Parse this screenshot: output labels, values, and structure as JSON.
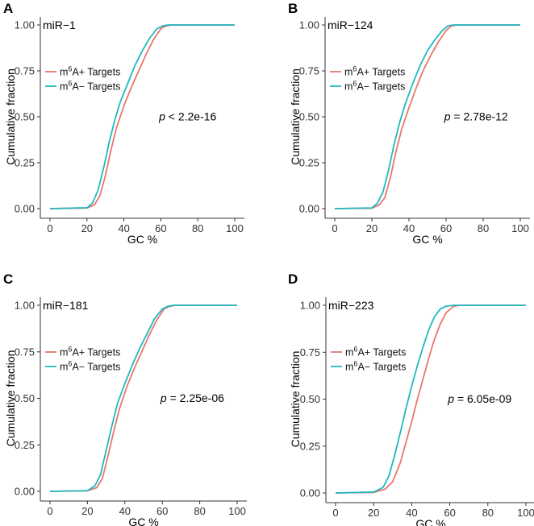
{
  "colors": {
    "positive": "#e8776e",
    "negative": "#1fb8c3"
  },
  "chart_data": [
    {
      "type": "line",
      "panel": "A",
      "title": "miR−1",
      "xlabel": "GC %",
      "ylabel": "Cumulative fraction",
      "xlim": [
        0,
        100
      ],
      "ylim": [
        0,
        1
      ],
      "x_ticks": [
        "0",
        "20",
        "40",
        "60",
        "80",
        "100"
      ],
      "y_ticks": [
        "0.00",
        "0.25",
        "0.50",
        "0.75",
        "1.00"
      ],
      "legend": {
        "prefix": "m",
        "superscript": "6",
        "positive": "A+ Targets",
        "negative": "A− Targets"
      },
      "p_label": "p",
      "p_text": " < 2.2e-16",
      "series": [
        {
          "name": "m6A+ Targets",
          "color_key": "positive",
          "x": [
            0,
            20,
            24,
            27,
            30,
            33,
            36,
            40,
            44,
            48,
            52,
            56,
            60,
            63,
            66,
            100
          ],
          "y": [
            0,
            0.003,
            0.02,
            0.07,
            0.18,
            0.32,
            0.44,
            0.56,
            0.66,
            0.75,
            0.84,
            0.92,
            0.98,
            0.995,
            1,
            1
          ]
        },
        {
          "name": "m6A− Targets",
          "color_key": "negative",
          "x": [
            0,
            20,
            23,
            26,
            29,
            32,
            35,
            38,
            42,
            46,
            50,
            54,
            58,
            61,
            64,
            100
          ],
          "y": [
            0,
            0.005,
            0.03,
            0.1,
            0.22,
            0.36,
            0.48,
            0.58,
            0.68,
            0.78,
            0.86,
            0.93,
            0.98,
            0.995,
            1,
            1
          ]
        }
      ]
    },
    {
      "type": "line",
      "panel": "B",
      "title": "miR−124",
      "xlabel": "GC %",
      "ylabel": "Cumulative fraction",
      "xlim": [
        0,
        100
      ],
      "ylim": [
        0,
        1
      ],
      "x_ticks": [
        "0",
        "20",
        "40",
        "60",
        "80",
        "100"
      ],
      "y_ticks": [
        "0.00",
        "0.25",
        "0.50",
        "0.75",
        "1.00"
      ],
      "legend": {
        "prefix": "m",
        "superscript": "6",
        "positive": "A+ Targets",
        "negative": "A− Targets"
      },
      "p_label": "p",
      "p_text": " = 2.78e-12",
      "series": [
        {
          "name": "m6A+ Targets",
          "color_key": "positive",
          "x": [
            0,
            20,
            24,
            27,
            30,
            33,
            36,
            40,
            44,
            48,
            52,
            56,
            60,
            63,
            66,
            100
          ],
          "y": [
            0,
            0.002,
            0.02,
            0.06,
            0.17,
            0.31,
            0.43,
            0.55,
            0.66,
            0.76,
            0.84,
            0.91,
            0.97,
            0.995,
            1,
            1
          ]
        },
        {
          "name": "m6A− Targets",
          "color_key": "negative",
          "x": [
            0,
            20,
            23,
            26,
            29,
            32,
            35,
            38,
            42,
            46,
            50,
            54,
            58,
            61,
            64,
            100
          ],
          "y": [
            0,
            0.004,
            0.03,
            0.09,
            0.21,
            0.35,
            0.47,
            0.57,
            0.68,
            0.78,
            0.86,
            0.92,
            0.97,
            0.995,
            1,
            1
          ]
        }
      ]
    },
    {
      "type": "line",
      "panel": "C",
      "title": "miR−181",
      "xlabel": "GC %",
      "ylabel": "Cumulative fraction",
      "xlim": [
        0,
        100
      ],
      "ylim": [
        0,
        1
      ],
      "x_ticks": [
        "0",
        "20",
        "40",
        "60",
        "80",
        "100"
      ],
      "y_ticks": [
        "0.00",
        "0.25",
        "0.50",
        "0.75",
        "1.00"
      ],
      "legend": {
        "prefix": "m",
        "superscript": "6",
        "positive": "A+ Targets",
        "negative": "A− Targets"
      },
      "p_label": "p",
      "p_text": " = 2.25e-06",
      "series": [
        {
          "name": "m6A+ Targets",
          "color_key": "positive",
          "x": [
            0,
            20,
            25,
            28,
            31,
            34,
            37,
            41,
            45,
            49,
            53,
            57,
            61,
            64,
            67,
            100
          ],
          "y": [
            0,
            0.003,
            0.02,
            0.07,
            0.19,
            0.32,
            0.44,
            0.56,
            0.66,
            0.75,
            0.84,
            0.92,
            0.98,
            0.995,
            1,
            1
          ]
        },
        {
          "name": "m6A− Targets",
          "color_key": "negative",
          "x": [
            0,
            20,
            24,
            27,
            30,
            33,
            36,
            40,
            44,
            48,
            52,
            56,
            60,
            63,
            66,
            100
          ],
          "y": [
            0,
            0.004,
            0.03,
            0.09,
            0.22,
            0.35,
            0.47,
            0.58,
            0.68,
            0.77,
            0.85,
            0.93,
            0.98,
            0.995,
            1,
            1
          ]
        }
      ]
    },
    {
      "type": "line",
      "panel": "D",
      "title": "miR−223",
      "xlabel": "GC %",
      "ylabel": "Cumulative fraction",
      "xlim": [
        0,
        100
      ],
      "ylim": [
        0,
        1
      ],
      "x_ticks": [
        "0",
        "20",
        "40",
        "60",
        "80",
        "100"
      ],
      "y_ticks": [
        "0.00",
        "0.25",
        "0.50",
        "0.75",
        "1.00"
      ],
      "legend": {
        "prefix": "m",
        "superscript": "6",
        "positive": "A+ Targets",
        "negative": "A− Targets"
      },
      "p_label": "p",
      "p_text": " = 6.05e-09",
      "series": [
        {
          "name": "m6A+ Targets",
          "color_key": "positive",
          "x": [
            0,
            20,
            26,
            30,
            34,
            37,
            40,
            43,
            46,
            49,
            52,
            55,
            58,
            62,
            65,
            100
          ],
          "y": [
            0,
            0.003,
            0.02,
            0.06,
            0.16,
            0.27,
            0.38,
            0.5,
            0.61,
            0.72,
            0.82,
            0.9,
            0.96,
            0.995,
            1,
            1
          ]
        },
        {
          "name": "m6A− Targets",
          "color_key": "negative",
          "x": [
            0,
            20,
            25,
            28,
            31,
            34,
            37,
            40,
            43,
            46,
            49,
            52,
            55,
            58,
            62,
            100
          ],
          "y": [
            0,
            0.005,
            0.03,
            0.09,
            0.2,
            0.32,
            0.45,
            0.57,
            0.68,
            0.78,
            0.87,
            0.94,
            0.98,
            0.995,
            1,
            1
          ]
        }
      ]
    }
  ]
}
